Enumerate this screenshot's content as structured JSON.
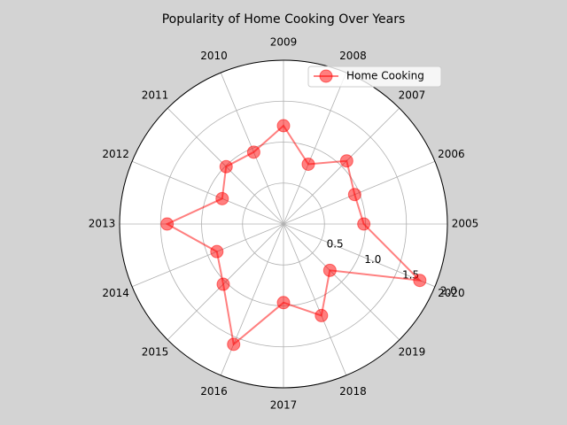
{
  "chart_data": {
    "type": "polar_line",
    "title": "Popularity of Home Cooking Over Years",
    "categories": [
      "2005",
      "2006",
      "2007",
      "2008",
      "2009",
      "2010",
      "2011",
      "2012",
      "2013",
      "2014",
      "2015",
      "2016",
      "2017",
      "2018",
      "2019",
      "2020"
    ],
    "series": [
      {
        "name": "Home Cooking",
        "color": "#ff0000",
        "values": [
          0.98,
          0.94,
          1.09,
          0.79,
          1.2,
          0.95,
          0.99,
          0.81,
          1.42,
          0.88,
          1.04,
          1.59,
          0.96,
          1.21,
          0.8,
          1.8
        ]
      }
    ],
    "rlim": [
      0,
      2.0
    ],
    "rticks": [
      0.5,
      {
        "value": 1.0,
        "label": "1.0"
      },
      1.5,
      {
        "value": 2.0,
        "label": "2.0"
      }
    ],
    "grid": true,
    "legend": "upper right"
  }
}
